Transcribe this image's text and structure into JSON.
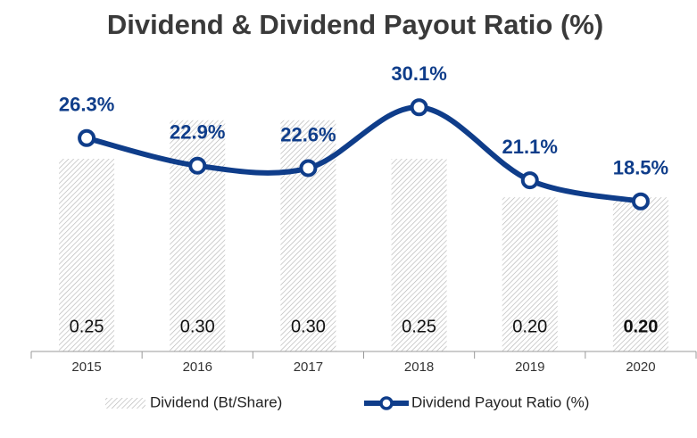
{
  "chart_data": {
    "type": "bar-line",
    "title": "Dividend & Dividend Payout Ratio (%)",
    "categories": [
      "2015",
      "2016",
      "2017",
      "2018",
      "2019",
      "2020"
    ],
    "series": [
      {
        "name": "Dividend (Bt/Share)",
        "type": "bar",
        "color": "#bdbdbd",
        "values": [
          0.25,
          0.3,
          0.3,
          0.25,
          0.2,
          0.2
        ],
        "value_labels": [
          "0.25",
          "0.30",
          "0.30",
          "0.25",
          "0.20",
          "0.20"
        ]
      },
      {
        "name": "Dividend Payout Ratio (%)",
        "type": "line",
        "axis": "y2",
        "color": "#0f3d8a",
        "values": [
          26.3,
          22.9,
          22.6,
          30.1,
          21.1,
          18.5
        ],
        "value_labels": [
          "26.3%",
          "22.9%",
          "22.6%",
          "30.1%",
          "21.1%",
          "18.5%"
        ]
      }
    ],
    "ylim": [
      0,
      0.4
    ],
    "y2lim": [
      0,
      38
    ],
    "smooth": true
  }
}
